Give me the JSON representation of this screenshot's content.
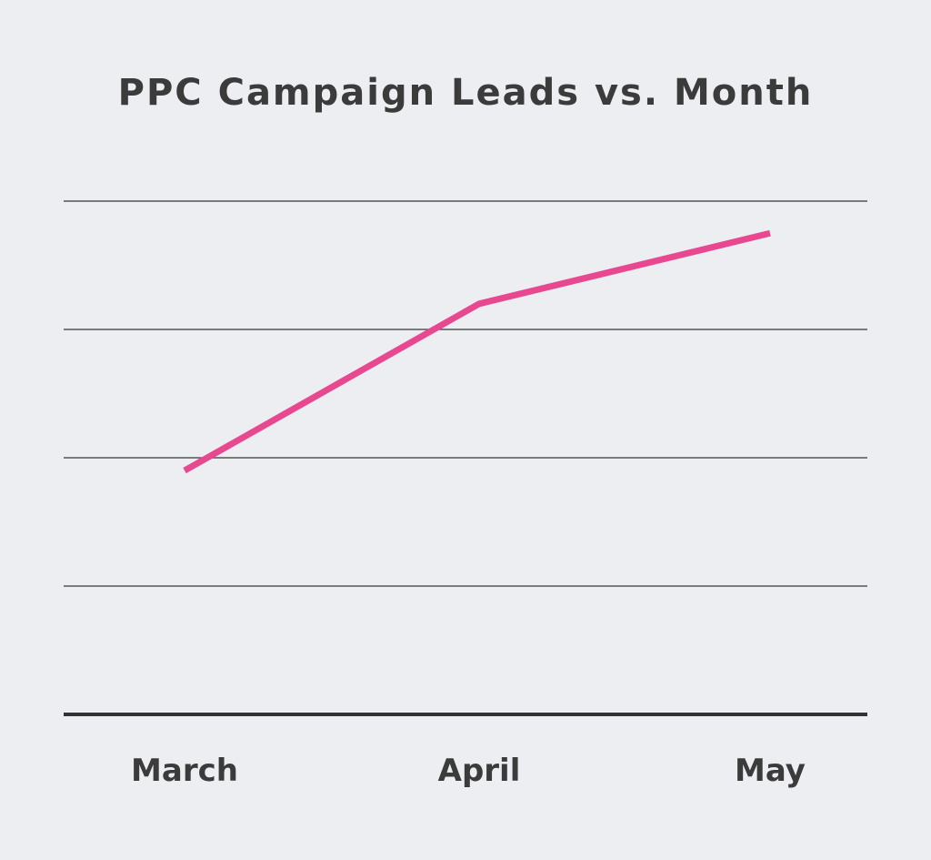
{
  "chart_data": {
    "type": "line",
    "title": "PPC Campaign Leads vs. Month",
    "xlabel": "",
    "ylabel": "",
    "categories": [
      "March",
      "April",
      "May"
    ],
    "series": [
      {
        "values": [
          1.9,
          3.2,
          3.75
        ]
      }
    ],
    "ylim": [
      0,
      4
    ],
    "grid": true,
    "legend": "none",
    "colors": {
      "line": "#e8488f",
      "grid": "#555555",
      "axis": "#333333",
      "text": "#3b3b3b",
      "background": "#edeef2"
    }
  }
}
